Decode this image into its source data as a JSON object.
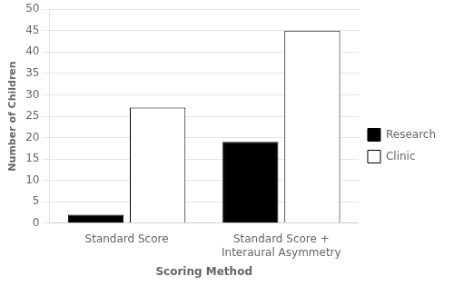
{
  "chart_data": {
    "type": "bar",
    "categories": [
      "Standard Score",
      "Standard Score +\nInteraural Asymmetry"
    ],
    "series": [
      {
        "name": "Research",
        "color": "#000000",
        "values": [
          2,
          19
        ]
      },
      {
        "name": "Clinic",
        "color": "#ffffff",
        "values": [
          27,
          45
        ]
      }
    ],
    "xlabel": "Scoring Method",
    "ylabel": "Number of Children",
    "ylim": [
      0,
      50
    ],
    "yticks": [
      0,
      5,
      10,
      15,
      20,
      25,
      30,
      35,
      40,
      45,
      50
    ],
    "grid": true,
    "legend": "right"
  }
}
